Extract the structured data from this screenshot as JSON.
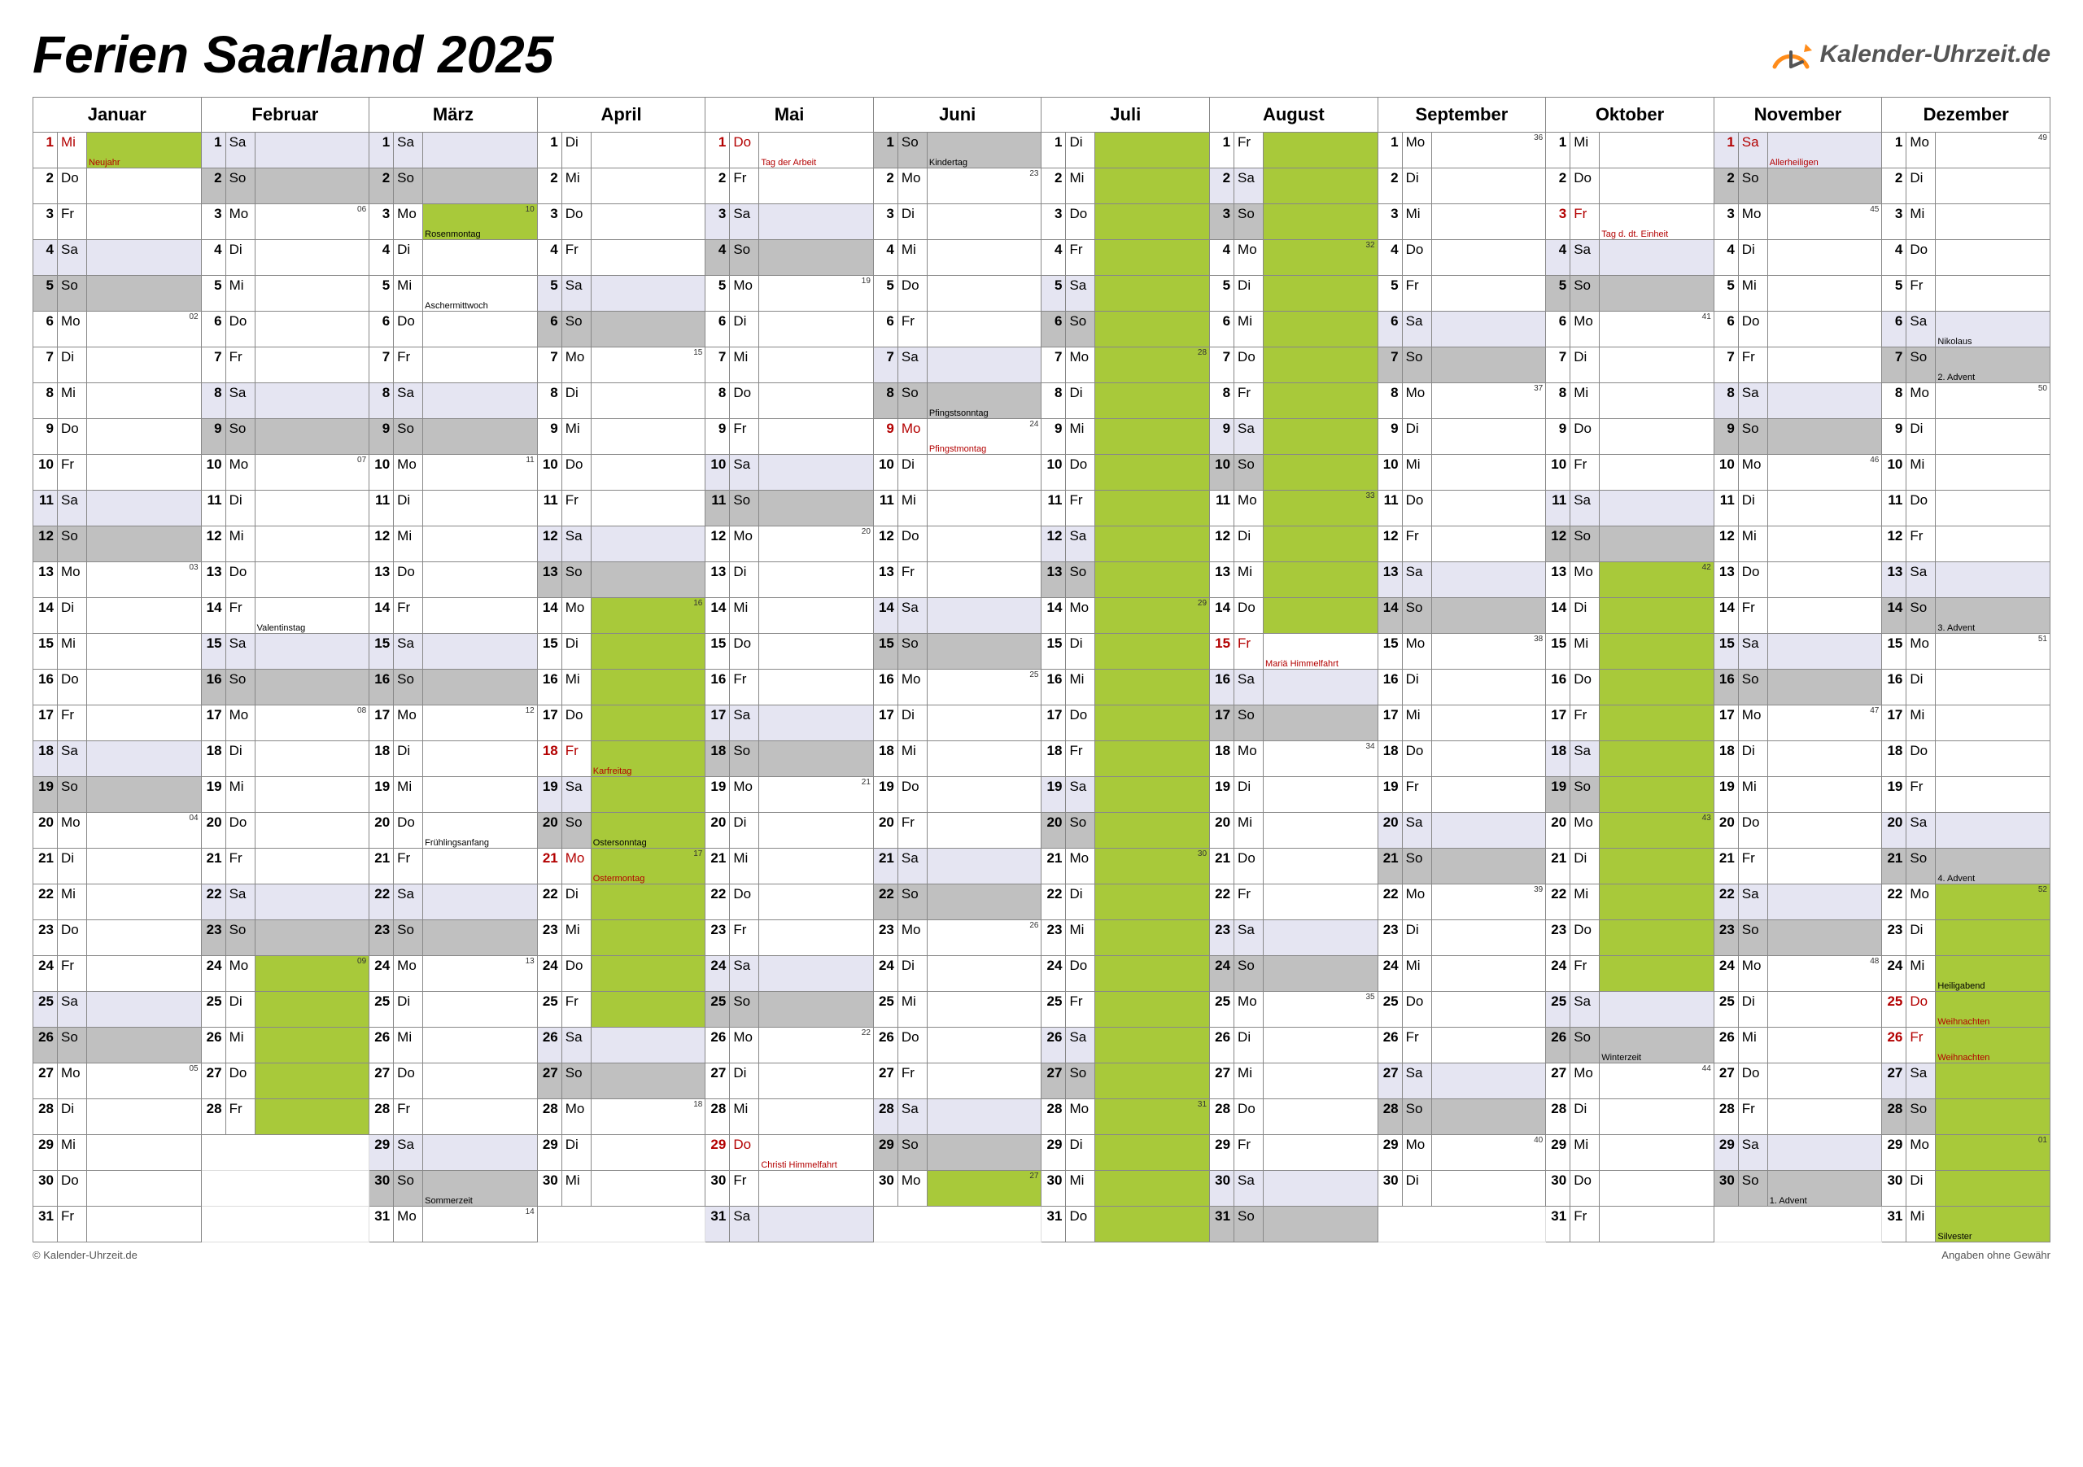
{
  "title": "Ferien Saarland 2025",
  "logo_text": "Kalender-Uhrzeit.de",
  "footer_left": "© Kalender-Uhrzeit.de",
  "footer_right": "Angaben ohne Gewähr",
  "colors": {
    "vacation": "#a8c93a",
    "sunday": "#c0c0c0",
    "saturday": "#e5e5f2",
    "holiday_text": "#b30000",
    "border": "#888888",
    "logo_accent": "#ff8c1a"
  },
  "months": [
    "Januar",
    "Februar",
    "März",
    "April",
    "Mai",
    "Juni",
    "Juli",
    "August",
    "September",
    "Oktober",
    "November",
    "Dezember"
  ],
  "weekdays": [
    "Mo",
    "Di",
    "Mi",
    "Do",
    "Fr",
    "Sa",
    "So"
  ],
  "year_start_wd": [
    2,
    5,
    5,
    1,
    3,
    6,
    1,
    4,
    0,
    2,
    5,
    0
  ],
  "days_in_month": [
    31,
    28,
    31,
    30,
    31,
    30,
    31,
    31,
    30,
    31,
    30,
    31
  ],
  "vacations": [
    {
      "m": 0,
      "from": 1,
      "to": 1
    },
    {
      "m": 1,
      "from": 24,
      "to": 28
    },
    {
      "m": 2,
      "from": 3,
      "to": 3
    },
    {
      "m": 3,
      "from": 14,
      "to": 25
    },
    {
      "m": 5,
      "from": 30,
      "to": 30
    },
    {
      "m": 6,
      "from": 1,
      "to": 31
    },
    {
      "m": 7,
      "from": 1,
      "to": 14
    },
    {
      "m": 9,
      "from": 13,
      "to": 24
    },
    {
      "m": 11,
      "from": 22,
      "to": 31
    }
  ],
  "holidays": [
    {
      "m": 0,
      "d": 1,
      "label": "Neujahr"
    },
    {
      "m": 3,
      "d": 18,
      "label": "Karfreitag"
    },
    {
      "m": 3,
      "d": 21,
      "label": "Ostermontag"
    },
    {
      "m": 4,
      "d": 1,
      "label": "Tag der Arbeit"
    },
    {
      "m": 4,
      "d": 29,
      "label": "Christi Himmelfahrt"
    },
    {
      "m": 5,
      "d": 9,
      "label": "Pfingstmontag"
    },
    {
      "m": 7,
      "d": 15,
      "label": "Mariä Himmelfahrt"
    },
    {
      "m": 9,
      "d": 3,
      "label": "Tag d. dt. Einheit"
    },
    {
      "m": 10,
      "d": 1,
      "label": "Allerheiligen"
    },
    {
      "m": 11,
      "d": 25,
      "label": "Weihnachten"
    },
    {
      "m": 11,
      "d": 26,
      "label": "Weihnachten"
    }
  ],
  "events": [
    {
      "m": 1,
      "d": 14,
      "label": "Valentinstag"
    },
    {
      "m": 2,
      "d": 3,
      "label": "Rosenmontag"
    },
    {
      "m": 2,
      "d": 5,
      "label": "Aschermittwoch"
    },
    {
      "m": 2,
      "d": 20,
      "label": "Frühlingsanfang"
    },
    {
      "m": 2,
      "d": 30,
      "label": "Sommerzeit"
    },
    {
      "m": 3,
      "d": 20,
      "label": "Ostersonntag"
    },
    {
      "m": 5,
      "d": 1,
      "label": "Kindertag"
    },
    {
      "m": 5,
      "d": 8,
      "label": "Pfingstsonntag"
    },
    {
      "m": 9,
      "d": 26,
      "label": "Winterzeit"
    },
    {
      "m": 10,
      "d": 30,
      "label": "1. Advent"
    },
    {
      "m": 11,
      "d": 6,
      "label": "Nikolaus"
    },
    {
      "m": 11,
      "d": 7,
      "label": "2. Advent"
    },
    {
      "m": 11,
      "d": 14,
      "label": "3. Advent"
    },
    {
      "m": 11,
      "d": 21,
      "label": "4. Advent"
    },
    {
      "m": 11,
      "d": 24,
      "label": "Heiligabend"
    },
    {
      "m": 11,
      "d": 31,
      "label": "Silvester"
    }
  ],
  "week_numbers": [
    {
      "m": 0,
      "d": 6,
      "w": "02"
    },
    {
      "m": 0,
      "d": 13,
      "w": "03"
    },
    {
      "m": 0,
      "d": 20,
      "w": "04"
    },
    {
      "m": 0,
      "d": 27,
      "w": "05"
    },
    {
      "m": 1,
      "d": 3,
      "w": "06"
    },
    {
      "m": 1,
      "d": 10,
      "w": "07"
    },
    {
      "m": 1,
      "d": 17,
      "w": "08"
    },
    {
      "m": 1,
      "d": 24,
      "w": "09"
    },
    {
      "m": 2,
      "d": 3,
      "w": "10"
    },
    {
      "m": 2,
      "d": 10,
      "w": "11"
    },
    {
      "m": 2,
      "d": 17,
      "w": "12"
    },
    {
      "m": 2,
      "d": 24,
      "w": "13"
    },
    {
      "m": 2,
      "d": 31,
      "w": "14"
    },
    {
      "m": 3,
      "d": 7,
      "w": "15"
    },
    {
      "m": 3,
      "d": 14,
      "w": "16"
    },
    {
      "m": 3,
      "d": 21,
      "w": "17"
    },
    {
      "m": 3,
      "d": 28,
      "w": "18"
    },
    {
      "m": 4,
      "d": 5,
      "w": "19"
    },
    {
      "m": 4,
      "d": 12,
      "w": "20"
    },
    {
      "m": 4,
      "d": 19,
      "w": "21"
    },
    {
      "m": 4,
      "d": 26,
      "w": "22"
    },
    {
      "m": 5,
      "d": 2,
      "w": "23"
    },
    {
      "m": 5,
      "d": 9,
      "w": "24"
    },
    {
      "m": 5,
      "d": 16,
      "w": "25"
    },
    {
      "m": 5,
      "d": 23,
      "w": "26"
    },
    {
      "m": 5,
      "d": 30,
      "w": "27"
    },
    {
      "m": 6,
      "d": 7,
      "w": "28"
    },
    {
      "m": 6,
      "d": 14,
      "w": "29"
    },
    {
      "m": 6,
      "d": 21,
      "w": "30"
    },
    {
      "m": 6,
      "d": 28,
      "w": "31"
    },
    {
      "m": 7,
      "d": 4,
      "w": "32"
    },
    {
      "m": 7,
      "d": 11,
      "w": "33"
    },
    {
      "m": 7,
      "d": 18,
      "w": "34"
    },
    {
      "m": 7,
      "d": 25,
      "w": "35"
    },
    {
      "m": 8,
      "d": 1,
      "w": "36"
    },
    {
      "m": 8,
      "d": 8,
      "w": "37"
    },
    {
      "m": 8,
      "d": 15,
      "w": "38"
    },
    {
      "m": 8,
      "d": 22,
      "w": "39"
    },
    {
      "m": 8,
      "d": 29,
      "w": "40"
    },
    {
      "m": 9,
      "d": 6,
      "w": "41"
    },
    {
      "m": 9,
      "d": 13,
      "w": "42"
    },
    {
      "m": 9,
      "d": 20,
      "w": "43"
    },
    {
      "m": 9,
      "d": 27,
      "w": "44"
    },
    {
      "m": 10,
      "d": 3,
      "w": "45"
    },
    {
      "m": 10,
      "d": 10,
      "w": "46"
    },
    {
      "m": 10,
      "d": 17,
      "w": "47"
    },
    {
      "m": 10,
      "d": 24,
      "w": "48"
    },
    {
      "m": 11,
      "d": 1,
      "w": "49"
    },
    {
      "m": 11,
      "d": 8,
      "w": "50"
    },
    {
      "m": 11,
      "d": 15,
      "w": "51"
    },
    {
      "m": 11,
      "d": 22,
      "w": "52"
    },
    {
      "m": 11,
      "d": 29,
      "w": "01"
    }
  ]
}
